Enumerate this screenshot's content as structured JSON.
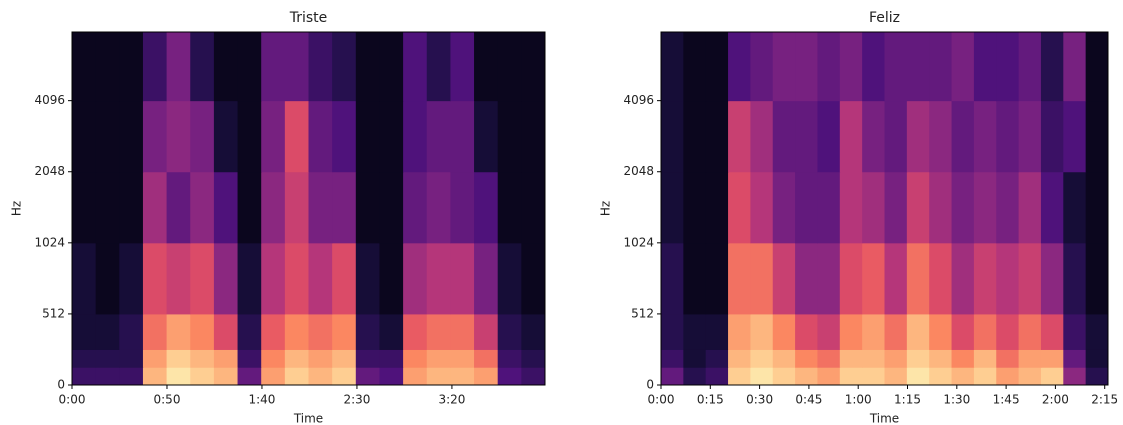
{
  "chart_data": [
    {
      "type": "spectrogram",
      "title": "Triste",
      "xlabel": "Time",
      "ylabel": "Hz",
      "colormap": "magma",
      "xlim": [
        0,
        249
      ],
      "xticks": [
        {
          "value": 0,
          "label": "0:00"
        },
        {
          "value": 50,
          "label": "0:50"
        },
        {
          "value": 100,
          "label": "1:40"
        },
        {
          "value": 150,
          "label": "2:30"
        },
        {
          "value": 200,
          "label": "3:20"
        }
      ],
      "ylim": [
        0,
        8000
      ],
      "yscale": "symlog",
      "linthresh": 512,
      "yticks": [
        0,
        512,
        1024,
        2048,
        4096
      ],
      "y_bins": [
        0,
        128,
        256,
        512,
        1024,
        2048,
        4096,
        8000
      ],
      "z": [
        [
          0.2,
          0.2,
          0.2,
          0.85,
          0.95,
          0.9,
          0.85,
          0.3,
          0.8,
          0.9,
          0.85,
          0.9,
          0.3,
          0.25,
          0.8,
          0.85,
          0.85,
          0.8,
          0.25,
          0.2
        ],
        [
          0.15,
          0.15,
          0.15,
          0.8,
          0.9,
          0.85,
          0.8,
          0.2,
          0.75,
          0.85,
          0.8,
          0.85,
          0.2,
          0.2,
          0.75,
          0.8,
          0.8,
          0.7,
          0.2,
          0.15
        ],
        [
          0.1,
          0.1,
          0.15,
          0.7,
          0.8,
          0.75,
          0.6,
          0.15,
          0.65,
          0.75,
          0.7,
          0.75,
          0.15,
          0.1,
          0.65,
          0.7,
          0.7,
          0.55,
          0.15,
          0.1
        ],
        [
          0.1,
          0.05,
          0.1,
          0.6,
          0.55,
          0.6,
          0.4,
          0.1,
          0.5,
          0.6,
          0.5,
          0.6,
          0.1,
          0.05,
          0.45,
          0.5,
          0.5,
          0.35,
          0.1,
          0.05
        ],
        [
          0.05,
          0.05,
          0.05,
          0.45,
          0.3,
          0.4,
          0.25,
          0.05,
          0.4,
          0.55,
          0.35,
          0.35,
          0.05,
          0.05,
          0.3,
          0.35,
          0.3,
          0.25,
          0.05,
          0.05
        ],
        [
          0.05,
          0.05,
          0.05,
          0.35,
          0.4,
          0.35,
          0.1,
          0.05,
          0.35,
          0.6,
          0.3,
          0.25,
          0.05,
          0.05,
          0.25,
          0.3,
          0.3,
          0.1,
          0.05,
          0.05
        ],
        [
          0.05,
          0.05,
          0.05,
          0.2,
          0.35,
          0.15,
          0.05,
          0.05,
          0.3,
          0.3,
          0.2,
          0.15,
          0.05,
          0.05,
          0.25,
          0.15,
          0.25,
          0.05,
          0.05,
          0.05
        ]
      ]
    },
    {
      "type": "spectrogram",
      "title": "Feliz",
      "xlabel": "Time",
      "ylabel": "Hz",
      "colormap": "magma",
      "xlim": [
        0,
        136
      ],
      "xticks": [
        {
          "value": 0,
          "label": "0:00"
        },
        {
          "value": 15,
          "label": "0:15"
        },
        {
          "value": 30,
          "label": "0:30"
        },
        {
          "value": 45,
          "label": "0:45"
        },
        {
          "value": 60,
          "label": "1:00"
        },
        {
          "value": 75,
          "label": "1:15"
        },
        {
          "value": 90,
          "label": "1:30"
        },
        {
          "value": 105,
          "label": "1:45"
        },
        {
          "value": 120,
          "label": "2:00"
        },
        {
          "value": 135,
          "label": "2:15"
        }
      ],
      "ylim": [
        0,
        8000
      ],
      "yscale": "symlog",
      "linthresh": 512,
      "yticks": [
        0,
        512,
        1024,
        2048,
        4096
      ],
      "y_bins": [
        0,
        128,
        256,
        512,
        1024,
        2048,
        4096,
        8000
      ],
      "z": [
        [
          0.3,
          0.15,
          0.2,
          0.9,
          0.95,
          0.9,
          0.85,
          0.8,
          0.9,
          0.9,
          0.85,
          0.95,
          0.9,
          0.85,
          0.9,
          0.8,
          0.85,
          0.9,
          0.4,
          0.15
        ],
        [
          0.2,
          0.1,
          0.15,
          0.85,
          0.9,
          0.85,
          0.75,
          0.7,
          0.85,
          0.85,
          0.8,
          0.9,
          0.85,
          0.75,
          0.85,
          0.7,
          0.8,
          0.8,
          0.3,
          0.1
        ],
        [
          0.15,
          0.1,
          0.1,
          0.8,
          0.85,
          0.75,
          0.6,
          0.55,
          0.75,
          0.8,
          0.7,
          0.85,
          0.75,
          0.6,
          0.7,
          0.6,
          0.7,
          0.6,
          0.2,
          0.1
        ],
        [
          0.15,
          0.05,
          0.05,
          0.7,
          0.7,
          0.55,
          0.4,
          0.4,
          0.6,
          0.65,
          0.5,
          0.7,
          0.6,
          0.45,
          0.55,
          0.5,
          0.55,
          0.4,
          0.15,
          0.05
        ],
        [
          0.1,
          0.05,
          0.05,
          0.6,
          0.5,
          0.35,
          0.3,
          0.3,
          0.5,
          0.45,
          0.35,
          0.55,
          0.45,
          0.35,
          0.4,
          0.35,
          0.45,
          0.25,
          0.1,
          0.05
        ],
        [
          0.1,
          0.05,
          0.05,
          0.55,
          0.45,
          0.3,
          0.3,
          0.25,
          0.5,
          0.35,
          0.3,
          0.45,
          0.4,
          0.3,
          0.35,
          0.3,
          0.35,
          0.2,
          0.25,
          0.05
        ],
        [
          0.1,
          0.05,
          0.05,
          0.25,
          0.3,
          0.35,
          0.35,
          0.3,
          0.35,
          0.25,
          0.3,
          0.3,
          0.3,
          0.35,
          0.25,
          0.25,
          0.3,
          0.15,
          0.35,
          0.05
        ]
      ]
    }
  ]
}
